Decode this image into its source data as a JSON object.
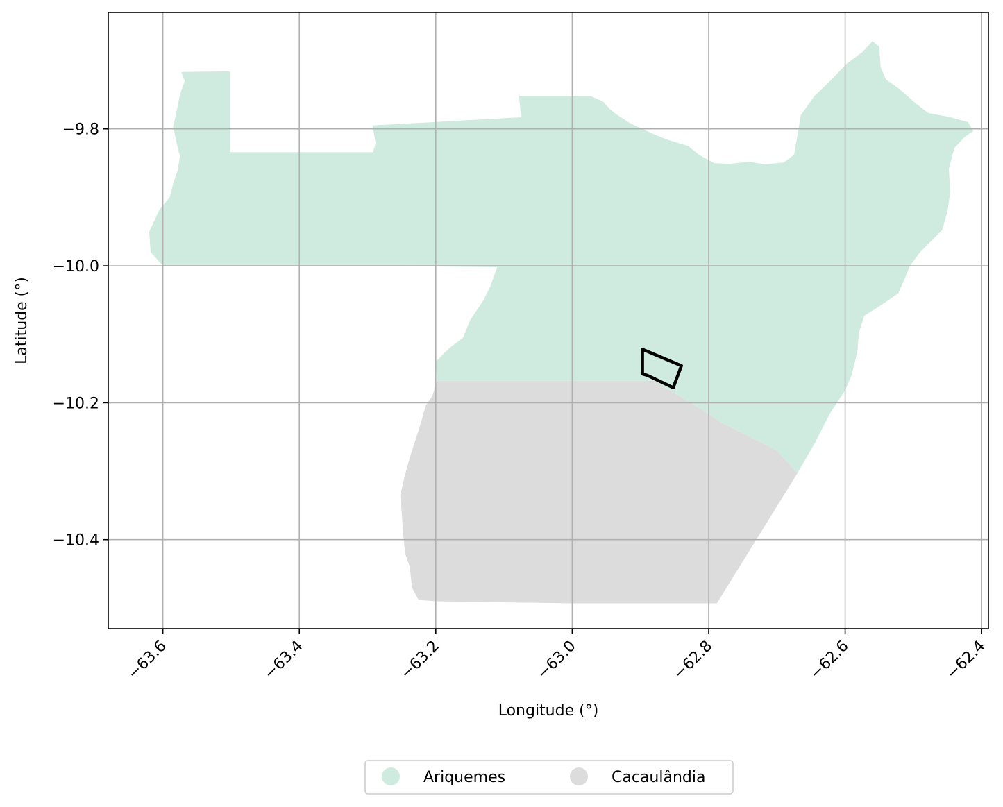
{
  "chart_data": {
    "type": "map",
    "xlabel": "Longitude (°)",
    "ylabel": "Latitude (°)",
    "xlim": [
      -63.68,
      -62.39
    ],
    "ylim": [
      -10.53,
      -9.63
    ],
    "grid": true,
    "xticks": [
      -63.6,
      -63.4,
      -63.2,
      -63.0,
      -62.8,
      -62.6,
      -62.4
    ],
    "xtick_labels": [
      "−63.6",
      "−63.4",
      "−63.2",
      "−63.0",
      "−62.8",
      "−62.6",
      "−62.4"
    ],
    "yticks": [
      -9.8,
      -10.0,
      -10.2,
      -10.4
    ],
    "ytick_labels": [
      "−9.8",
      "−10.0",
      "−10.2",
      "−10.4"
    ],
    "legend_position": "bottom-center",
    "regions": [
      {
        "name": "Ariquemes",
        "color": "#cfebdf",
        "polygon": [
          [
            -63.573,
            -9.717
          ],
          [
            -63.502,
            -9.716
          ],
          [
            -63.502,
            -9.834
          ],
          [
            -63.292,
            -9.834
          ],
          [
            -63.288,
            -9.821
          ],
          [
            -63.293,
            -9.795
          ],
          [
            -63.075,
            -9.783
          ],
          [
            -63.078,
            -9.752
          ],
          [
            -62.973,
            -9.752
          ],
          [
            -62.955,
            -9.76
          ],
          [
            -62.945,
            -9.771
          ],
          [
            -62.935,
            -9.779
          ],
          [
            -62.915,
            -9.792
          ],
          [
            -62.88,
            -9.808
          ],
          [
            -62.86,
            -9.816
          ],
          [
            -62.83,
            -9.825
          ],
          [
            -62.814,
            -9.838
          ],
          [
            -62.792,
            -9.85
          ],
          [
            -62.77,
            -9.851
          ],
          [
            -62.74,
            -9.848
          ],
          [
            -62.718,
            -9.852
          ],
          [
            -62.69,
            -9.849
          ],
          [
            -62.675,
            -9.838
          ],
          [
            -62.67,
            -9.81
          ],
          [
            -62.665,
            -9.78
          ],
          [
            -62.645,
            -9.752
          ],
          [
            -62.62,
            -9.728
          ],
          [
            -62.598,
            -9.705
          ],
          [
            -62.575,
            -9.688
          ],
          [
            -62.56,
            -9.672
          ],
          [
            -62.55,
            -9.68
          ],
          [
            -62.548,
            -9.71
          ],
          [
            -62.54,
            -9.728
          ],
          [
            -62.52,
            -9.742
          ],
          [
            -62.5,
            -9.76
          ],
          [
            -62.478,
            -9.777
          ],
          [
            -62.45,
            -9.782
          ],
          [
            -62.42,
            -9.79
          ],
          [
            -62.412,
            -9.803
          ],
          [
            -62.425,
            -9.812
          ],
          [
            -62.44,
            -9.828
          ],
          [
            -62.448,
            -9.858
          ],
          [
            -62.446,
            -9.892
          ],
          [
            -62.45,
            -9.921
          ],
          [
            -62.458,
            -9.948
          ],
          [
            -62.475,
            -9.965
          ],
          [
            -62.49,
            -9.98
          ],
          [
            -62.505,
            -10.0
          ],
          [
            -62.512,
            -10.017
          ],
          [
            -62.522,
            -10.04
          ],
          [
            -62.548,
            -10.058
          ],
          [
            -62.572,
            -10.073
          ],
          [
            -62.58,
            -10.098
          ],
          [
            -62.582,
            -10.125
          ],
          [
            -62.59,
            -10.158
          ],
          [
            -62.6,
            -10.182
          ],
          [
            -62.612,
            -10.2
          ],
          [
            -62.622,
            -10.215
          ],
          [
            -62.645,
            -10.26
          ],
          [
            -62.67,
            -10.303
          ],
          [
            -62.7,
            -10.27
          ],
          [
            -62.74,
            -10.25
          ],
          [
            -62.78,
            -10.23
          ],
          [
            -62.81,
            -10.21
          ],
          [
            -62.85,
            -10.186
          ],
          [
            -62.88,
            -10.168
          ],
          [
            -63.0,
            -10.168
          ],
          [
            -63.198,
            -10.168
          ],
          [
            -63.2,
            -10.14
          ],
          [
            -63.18,
            -10.12
          ],
          [
            -63.16,
            -10.105
          ],
          [
            -63.15,
            -10.08
          ],
          [
            -63.13,
            -10.05
          ],
          [
            -63.12,
            -10.03
          ],
          [
            -63.11,
            -10.002
          ],
          [
            -63.3,
            -10.0
          ],
          [
            -63.6,
            -10.0
          ],
          [
            -63.618,
            -9.98
          ],
          [
            -63.62,
            -9.95
          ],
          [
            -63.605,
            -9.918
          ],
          [
            -63.59,
            -9.9
          ],
          [
            -63.585,
            -9.88
          ],
          [
            -63.578,
            -9.86
          ],
          [
            -63.575,
            -9.84
          ],
          [
            -63.58,
            -9.82
          ],
          [
            -63.585,
            -9.797
          ],
          [
            -63.58,
            -9.775
          ],
          [
            -63.575,
            -9.75
          ],
          [
            -63.568,
            -9.73
          ]
        ]
      },
      {
        "name": "Cacaulândia",
        "color": "#dcdcdc",
        "polygon": [
          [
            -63.198,
            -10.168
          ],
          [
            -63.0,
            -10.168
          ],
          [
            -62.88,
            -10.168
          ],
          [
            -62.85,
            -10.186
          ],
          [
            -62.81,
            -10.21
          ],
          [
            -62.78,
            -10.23
          ],
          [
            -62.74,
            -10.25
          ],
          [
            -62.7,
            -10.27
          ],
          [
            -62.67,
            -10.303
          ],
          [
            -62.788,
            -10.493
          ],
          [
            -63.0,
            -10.493
          ],
          [
            -63.2,
            -10.49
          ],
          [
            -63.225,
            -10.488
          ],
          [
            -63.235,
            -10.47
          ],
          [
            -63.238,
            -10.44
          ],
          [
            -63.245,
            -10.42
          ],
          [
            -63.248,
            -10.39
          ],
          [
            -63.25,
            -10.36
          ],
          [
            -63.252,
            -10.335
          ],
          [
            -63.245,
            -10.305
          ],
          [
            -63.238,
            -10.28
          ],
          [
            -63.23,
            -10.255
          ],
          [
            -63.222,
            -10.23
          ],
          [
            -63.215,
            -10.205
          ],
          [
            -63.205,
            -10.19
          ]
        ]
      }
    ],
    "outline": [
      [
        -62.897,
        -10.122
      ],
      [
        -62.84,
        -10.146
      ],
      [
        -62.852,
        -10.178
      ],
      [
        -62.89,
        -10.16
      ],
      [
        -62.897,
        -10.158
      ]
    ],
    "legend": [
      {
        "label": "Ariquemes",
        "color": "#cfebdf"
      },
      {
        "label": "Cacaulândia",
        "color": "#dcdcdc"
      }
    ]
  }
}
